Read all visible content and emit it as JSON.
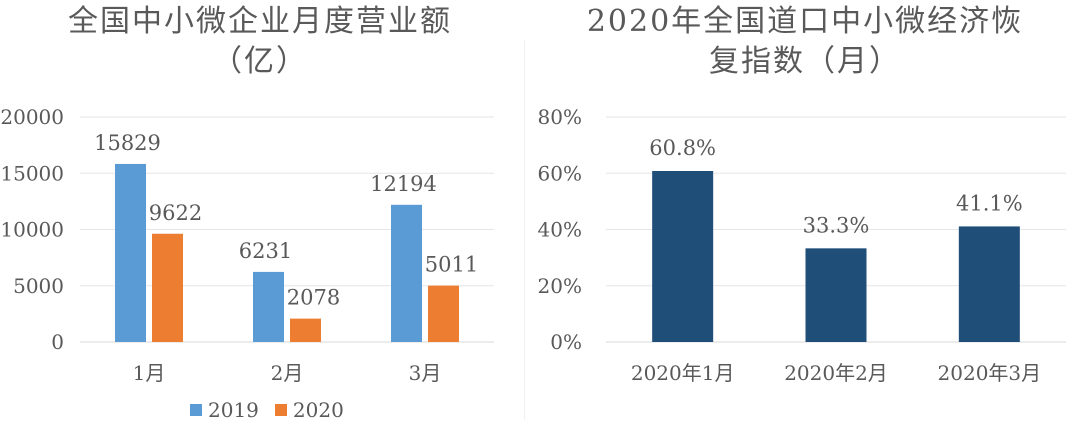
{
  "chart_data": [
    {
      "type": "bar",
      "title_lines": [
        "全国中小微企业月度营业额",
        "（亿）"
      ],
      "categories": [
        "1月",
        "2月",
        "3月"
      ],
      "series": [
        {
          "name": "2019",
          "values": [
            15829,
            6231,
            12194
          ],
          "color": "#5B9BD5"
        },
        {
          "name": "2020",
          "values": [
            9622,
            2078,
            5011
          ],
          "color": "#ED7D31"
        }
      ],
      "ylim": [
        0,
        20000
      ],
      "yticks": [
        0,
        5000,
        10000,
        15000,
        20000
      ],
      "ytick_labels": [
        "0",
        "5000",
        "10000",
        "15000",
        "20000"
      ],
      "data_labels": [
        [
          "15829",
          "6231",
          "12194"
        ],
        [
          "9622",
          "2078",
          "5011"
        ]
      ],
      "grid": true,
      "legend": "bottom"
    },
    {
      "type": "bar",
      "title_lines": [
        "2020年全国道口中小微经济恢",
        "复指数（月）"
      ],
      "categories": [
        "2020年1月",
        "2020年2月",
        "2020年3月"
      ],
      "series": [
        {
          "values": [
            60.8,
            33.3,
            41.1
          ],
          "color": "#1F4E79"
        }
      ],
      "ylim": [
        0,
        80
      ],
      "yticks": [
        0,
        20,
        40,
        60,
        80
      ],
      "ytick_labels": [
        "0%",
        "20%",
        "40%",
        "60%",
        "80%"
      ],
      "data_labels": [
        [
          "60.8%",
          "33.3%",
          "41.1%"
        ]
      ],
      "grid": true
    }
  ]
}
